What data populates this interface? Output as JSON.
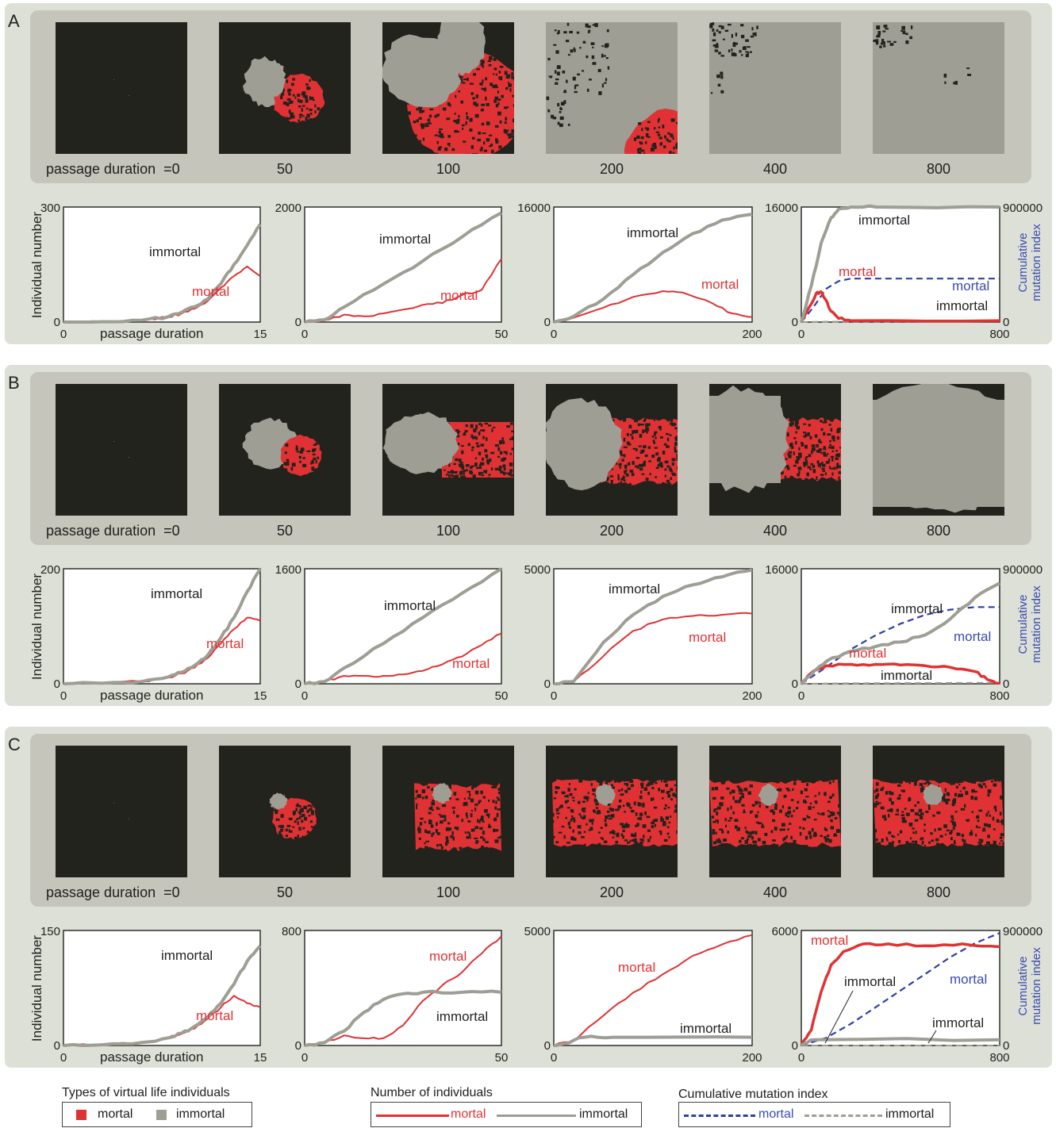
{
  "colors": {
    "mortal": "#e03234",
    "immortal": "#9e9e94",
    "mutation": "#2e3fa8",
    "dark": "#23231d",
    "panel_bg": "#dde0d6",
    "strip_bg": "#c5c5bb",
    "mutation_label": "#3a4bb0"
  },
  "snapshot_labels": [
    "passage duration  =0",
    "50",
    "100",
    "200",
    "400",
    "800"
  ],
  "axis": {
    "ylabel": "Individual number",
    "xlabel": "passage duration",
    "ylabel_right": [
      "Cumulative",
      "mutation index"
    ]
  },
  "panels": [
    {
      "letter": "A",
      "snapshot_types": [
        "seed",
        "A50",
        "A100",
        "A200",
        "A400",
        "A800"
      ]
    },
    {
      "letter": "B",
      "snapshot_types": [
        "seed",
        "B50",
        "B100",
        "B200",
        "B400",
        "B800"
      ]
    },
    {
      "letter": "C",
      "snapshot_types": [
        "seed",
        "C50",
        "C100",
        "C200",
        "C400",
        "C800"
      ]
    }
  ],
  "chart_data": [
    {
      "type": "line",
      "panel": "A",
      "index": 1,
      "xlim": [
        0,
        15
      ],
      "ylim": [
        0,
        300
      ],
      "ytick_labels": [
        "0",
        "300"
      ],
      "xtick_labels": [
        "0",
        "15"
      ],
      "series": [
        {
          "name": "immortal",
          "x": [
            0,
            3,
            6,
            8,
            9,
            10,
            11,
            12,
            13,
            14,
            15
          ],
          "y": [
            0,
            1,
            5,
            14,
            25,
            40,
            60,
            100,
            150,
            200,
            255
          ]
        },
        {
          "name": "mortal",
          "x": [
            0,
            3,
            6,
            8,
            9,
            10,
            11,
            12,
            13,
            14,
            15
          ],
          "y": [
            0,
            1,
            5,
            13,
            22,
            35,
            55,
            90,
            120,
            145,
            120
          ]
        }
      ],
      "labels": {
        "immortal": "immortal",
        "mortal": "mortal"
      }
    },
    {
      "type": "line",
      "panel": "A",
      "index": 2,
      "xlim": [
        0,
        50
      ],
      "ylim": [
        0,
        2000
      ],
      "ytick_labels": [
        "0",
        "2000"
      ],
      "xtick_labels": [
        "0",
        "50"
      ],
      "series": [
        {
          "name": "immortal",
          "x": [
            0,
            5,
            10,
            20,
            30,
            40,
            50
          ],
          "y": [
            0,
            40,
            260,
            660,
            1060,
            1480,
            1900
          ]
        },
        {
          "name": "mortal",
          "x": [
            0,
            5,
            10,
            15,
            20,
            30,
            35,
            40,
            45,
            50
          ],
          "y": [
            0,
            30,
            130,
            100,
            150,
            300,
            330,
            470,
            560,
            1100
          ]
        }
      ],
      "labels": {
        "immortal": "immortal",
        "mortal": "mortal"
      }
    },
    {
      "type": "line",
      "panel": "A",
      "index": 3,
      "xlim": [
        0,
        200
      ],
      "ylim": [
        0,
        16000
      ],
      "ytick_labels": [
        "0",
        "16000"
      ],
      "xtick_labels": [
        "0",
        "200"
      ],
      "series": [
        {
          "name": "immortal",
          "x": [
            0,
            20,
            50,
            80,
            110,
            140,
            170,
            200
          ],
          "y": [
            0,
            800,
            3200,
            6600,
            9700,
            12300,
            14200,
            15000
          ]
        },
        {
          "name": "mortal",
          "x": [
            0,
            20,
            50,
            80,
            110,
            130,
            160,
            180,
            200
          ],
          "y": [
            0,
            600,
            2000,
            3500,
            4300,
            4100,
            2600,
            1200,
            700
          ]
        }
      ],
      "labels": {
        "immortal": "immortal",
        "mortal": "mortal"
      }
    },
    {
      "type": "line",
      "panel": "A",
      "index": 4,
      "xlim": [
        0,
        800
      ],
      "ylim": [
        0,
        16000
      ],
      "y2lim": [
        0,
        900000
      ],
      "ytick_labels": [
        "0",
        "16000"
      ],
      "y2tick_labels": [
        "0",
        "900000"
      ],
      "xtick_labels": [
        "0",
        "800"
      ],
      "series": [
        {
          "name": "immortal",
          "x": [
            0,
            40,
            80,
            120,
            150,
            200,
            300,
            800
          ],
          "y": [
            0,
            5000,
            11000,
            14500,
            15700,
            16000,
            16000,
            16000
          ]
        },
        {
          "name": "mortal",
          "x": [
            0,
            40,
            60,
            80,
            100,
            120,
            150,
            200,
            800
          ],
          "y": [
            0,
            2500,
            4000,
            4200,
            3000,
            1500,
            500,
            200,
            200
          ]
        },
        {
          "name": "mortal mutation",
          "axis": "right",
          "x": [
            0,
            50,
            100,
            150,
            200,
            300,
            800
          ],
          "y": [
            0,
            120000,
            260000,
            320000,
            340000,
            340000,
            340000
          ]
        },
        {
          "name": "immortal mutation",
          "axis": "right",
          "x": [
            0,
            100,
            800
          ],
          "y": [
            0,
            3000,
            6000
          ]
        }
      ],
      "labels": {
        "immortal": "immortal",
        "mortal": "mortal",
        "mortal_mut": "mortal",
        "immortal_mut": "immortal"
      }
    },
    {
      "type": "line",
      "panel": "B",
      "index": 1,
      "xlim": [
        0,
        15
      ],
      "ylim": [
        0,
        200
      ],
      "ytick_labels": [
        "0",
        "200"
      ],
      "xtick_labels": [
        "0",
        "15"
      ],
      "series": [
        {
          "name": "immortal",
          "x": [
            0,
            3,
            6,
            8,
            9,
            10,
            11,
            12,
            13,
            14,
            15
          ],
          "y": [
            0,
            1,
            4,
            12,
            20,
            32,
            50,
            80,
            115,
            160,
            200
          ]
        },
        {
          "name": "mortal",
          "x": [
            0,
            3,
            6,
            8,
            9,
            10,
            11,
            12,
            13,
            14,
            15
          ],
          "y": [
            0,
            1,
            4,
            11,
            18,
            28,
            45,
            70,
            95,
            115,
            110
          ]
        }
      ],
      "labels": {
        "immortal": "immortal",
        "mortal": "mortal"
      }
    },
    {
      "type": "line",
      "panel": "B",
      "index": 2,
      "xlim": [
        0,
        50
      ],
      "ylim": [
        0,
        1600
      ],
      "ytick_labels": [
        "0",
        "1600"
      ],
      "xtick_labels": [
        "0",
        "50"
      ],
      "series": [
        {
          "name": "immortal",
          "x": [
            0,
            5,
            10,
            20,
            30,
            40,
            50
          ],
          "y": [
            0,
            30,
            220,
            560,
            920,
            1260,
            1600
          ]
        },
        {
          "name": "mortal",
          "x": [
            0,
            5,
            10,
            15,
            20,
            25,
            30,
            35,
            40,
            45,
            50
          ],
          "y": [
            0,
            30,
            110,
            110,
            110,
            130,
            180,
            270,
            380,
            540,
            700
          ]
        }
      ],
      "labels": {
        "immortal": "immortal",
        "mortal": "mortal"
      }
    },
    {
      "type": "line",
      "panel": "B",
      "index": 3,
      "xlim": [
        0,
        200
      ],
      "ylim": [
        0,
        5000
      ],
      "ytick_labels": [
        "0",
        "5000"
      ],
      "xtick_labels": [
        "0",
        "200"
      ],
      "series": [
        {
          "name": "immortal",
          "x": [
            0,
            20,
            50,
            80,
            110,
            140,
            170,
            200
          ],
          "y": [
            0,
            100,
            1800,
            3000,
            3800,
            4300,
            4650,
            4950
          ]
        },
        {
          "name": "mortal",
          "x": [
            0,
            20,
            50,
            80,
            110,
            140,
            170,
            200
          ],
          "y": [
            0,
            80,
            1200,
            2300,
            2800,
            2950,
            3000,
            3050
          ]
        }
      ],
      "labels": {
        "immortal": "immortal",
        "mortal": "mortal"
      }
    },
    {
      "type": "line",
      "panel": "B",
      "index": 4,
      "xlim": [
        0,
        800
      ],
      "ylim": [
        0,
        16000
      ],
      "y2lim": [
        0,
        900000
      ],
      "ytick_labels": [
        "0",
        "16000"
      ],
      "y2tick_labels": [
        "0",
        "900000"
      ],
      "xtick_labels": [
        "0",
        "800"
      ],
      "series": [
        {
          "name": "immortal",
          "x": [
            0,
            50,
            100,
            200,
            300,
            400,
            500,
            600,
            700,
            800
          ],
          "y": [
            0,
            1700,
            3100,
            4500,
            5200,
            5800,
            6800,
            9000,
            12000,
            14000
          ]
        },
        {
          "name": "mortal",
          "x": [
            0,
            50,
            100,
            200,
            300,
            400,
            500,
            600,
            700,
            750,
            800
          ],
          "y": [
            0,
            1800,
            2500,
            2700,
            2700,
            2600,
            2500,
            2300,
            1700,
            600,
            100
          ]
        },
        {
          "name": "mortal mutation",
          "axis": "right",
          "x": [
            0,
            100,
            200,
            300,
            400,
            500,
            600,
            700,
            800
          ],
          "y": [
            0,
            130000,
            270000,
            380000,
            470000,
            540000,
            580000,
            600000,
            600000
          ]
        },
        {
          "name": "immortal mutation",
          "axis": "right",
          "x": [
            0,
            200,
            800
          ],
          "y": [
            0,
            4000,
            8000
          ]
        }
      ],
      "labels": {
        "immortal": "immortal",
        "mortal": "mortal",
        "mortal_mut": "mortal",
        "immortal_mut": "immortal"
      }
    },
    {
      "type": "line",
      "panel": "C",
      "index": 1,
      "xlim": [
        0,
        15
      ],
      "ylim": [
        0,
        150
      ],
      "ytick_labels": [
        "0",
        "150"
      ],
      "xtick_labels": [
        "0",
        "15"
      ],
      "series": [
        {
          "name": "immortal",
          "x": [
            0,
            3,
            6,
            8,
            9,
            10,
            11,
            12,
            13,
            14,
            15
          ],
          "y": [
            0,
            1,
            4,
            10,
            16,
            25,
            37,
            55,
            80,
            110,
            130
          ]
        },
        {
          "name": "mortal",
          "x": [
            0,
            3,
            6,
            8,
            9,
            10,
            11,
            12,
            13,
            14,
            15
          ],
          "y": [
            0,
            1,
            4,
            10,
            15,
            22,
            35,
            50,
            65,
            55,
            50
          ]
        }
      ],
      "labels": {
        "immortal": "immortal",
        "mortal": "mortal"
      }
    },
    {
      "type": "line",
      "panel": "C",
      "index": 2,
      "xlim": [
        0,
        50
      ],
      "ylim": [
        0,
        800
      ],
      "ytick_labels": [
        "0",
        "800"
      ],
      "xtick_labels": [
        "0",
        "50"
      ],
      "series": [
        {
          "name": "immortal",
          "x": [
            0,
            5,
            10,
            15,
            20,
            25,
            30,
            40,
            50
          ],
          "y": [
            0,
            20,
            100,
            230,
            320,
            360,
            370,
            370,
            370
          ]
        },
        {
          "name": "mortal",
          "x": [
            0,
            5,
            10,
            15,
            20,
            25,
            30,
            35,
            40,
            45,
            50
          ],
          "y": [
            0,
            20,
            70,
            50,
            50,
            140,
            310,
            420,
            510,
            640,
            760
          ]
        }
      ],
      "labels": {
        "immortal": "immortal",
        "mortal": "mortal"
      }
    },
    {
      "type": "line",
      "panel": "C",
      "index": 3,
      "xlim": [
        0,
        200
      ],
      "ylim": [
        0,
        5000
      ],
      "ytick_labels": [
        "0",
        "5000"
      ],
      "xtick_labels": [
        "0",
        "200"
      ],
      "series": [
        {
          "name": "immortal",
          "x": [
            0,
            10,
            30,
            60,
            200
          ],
          "y": [
            0,
            80,
            350,
            360,
            360
          ]
        },
        {
          "name": "mortal",
          "x": [
            0,
            20,
            50,
            80,
            110,
            140,
            170,
            200
          ],
          "y": [
            0,
            200,
            1300,
            2300,
            3100,
            3900,
            4400,
            4800
          ]
        }
      ],
      "labels": {
        "immortal": "immortal",
        "mortal": "mortal"
      }
    },
    {
      "type": "line",
      "panel": "C",
      "index": 4,
      "xlim": [
        0,
        800
      ],
      "ylim": [
        0,
        6000
      ],
      "y2lim": [
        0,
        900000
      ],
      "ytick_labels": [
        "0",
        "6000"
      ],
      "y2tick_labels": [
        "0",
        "900000"
      ],
      "xtick_labels": [
        "0",
        "800"
      ],
      "series": [
        {
          "name": "immortal",
          "x": [
            0,
            50,
            800
          ],
          "y": [
            0,
            300,
            300
          ]
        },
        {
          "name": "mortal",
          "x": [
            0,
            40,
            80,
            120,
            170,
            250,
            350,
            500,
            650,
            800
          ],
          "y": [
            0,
            800,
            2800,
            4200,
            4900,
            5300,
            5300,
            5200,
            5300,
            5150
          ]
        },
        {
          "name": "mortal mutation",
          "axis": "right",
          "x": [
            0,
            100,
            200,
            300,
            400,
            500,
            600,
            700,
            800
          ],
          "y": [
            0,
            60000,
            170000,
            300000,
            430000,
            560000,
            690000,
            800000,
            880000
          ]
        },
        {
          "name": "immortal mutation",
          "axis": "right",
          "x": [
            0,
            800
          ],
          "y": [
            0,
            0
          ]
        }
      ],
      "labels": {
        "immortal": "immortal",
        "mortal": "mortal",
        "mortal_mut": "mortal",
        "immortal_mut": "immortal"
      }
    }
  ],
  "legend": {
    "types": {
      "title": "Types of virtual life individuals",
      "mortal": "mortal",
      "immortal": "immortal"
    },
    "number": {
      "title": "Number of individuals",
      "mortal": "mortal",
      "immortal": "immortal"
    },
    "mutation": {
      "title": "Cumulative mutation index",
      "mortal": "mortal",
      "immortal": "immortal"
    }
  }
}
